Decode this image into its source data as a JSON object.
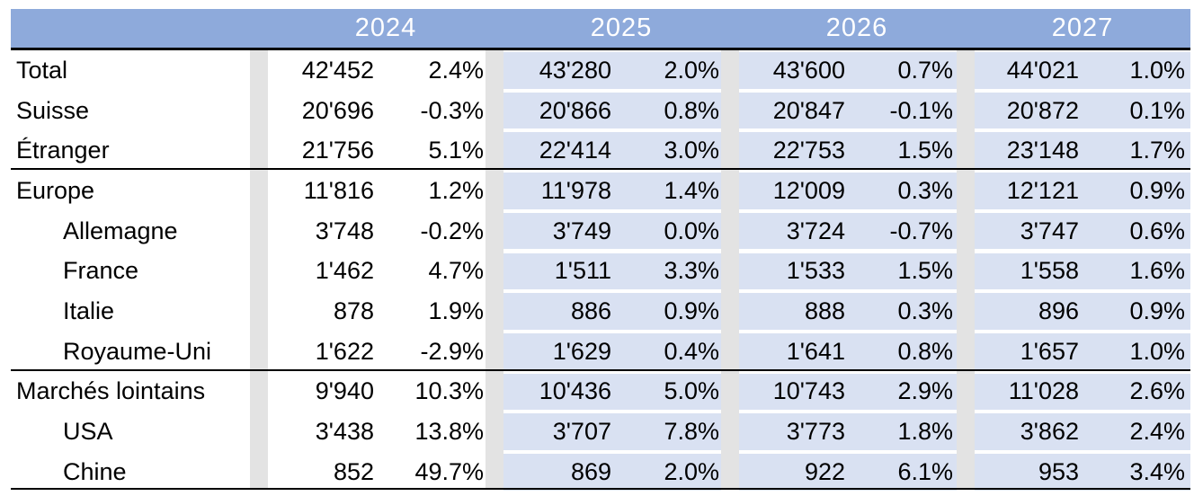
{
  "header": {
    "years": [
      "2024",
      "2025",
      "2026",
      "2027"
    ]
  },
  "rows": [
    {
      "label": "Total",
      "indent": false,
      "vals": [
        "42'452",
        "2.4%",
        "43'280",
        "2.0%",
        "43'600",
        "0.7%",
        "44'021",
        "1.0%"
      ]
    },
    {
      "label": "Suisse",
      "indent": false,
      "vals": [
        "20'696",
        "-0.3%",
        "20'866",
        "0.8%",
        "20'847",
        "-0.1%",
        "20'872",
        "0.1%"
      ]
    },
    {
      "label": "Étranger",
      "indent": false,
      "vals": [
        "21'756",
        "5.1%",
        "22'414",
        "3.0%",
        "22'753",
        "1.5%",
        "23'148",
        "1.7%"
      ]
    },
    {
      "label": "Europe",
      "indent": false,
      "vals": [
        "11'816",
        "1.2%",
        "11'978",
        "1.4%",
        "12'009",
        "0.3%",
        "12'121",
        "0.9%"
      ]
    },
    {
      "label": "Allemagne",
      "indent": true,
      "vals": [
        "3'748",
        "-0.2%",
        "3'749",
        "0.0%",
        "3'724",
        "-0.7%",
        "3'747",
        "0.6%"
      ]
    },
    {
      "label": "France",
      "indent": true,
      "vals": [
        "1'462",
        "4.7%",
        "1'511",
        "3.3%",
        "1'533",
        "1.5%",
        "1'558",
        "1.6%"
      ]
    },
    {
      "label": "Italie",
      "indent": true,
      "vals": [
        "878",
        "1.9%",
        "886",
        "0.9%",
        "888",
        "0.3%",
        "896",
        "0.9%"
      ]
    },
    {
      "label": "Royaume-Uni",
      "indent": true,
      "vals": [
        "1'622",
        "-2.9%",
        "1'629",
        "0.4%",
        "1'641",
        "0.8%",
        "1'657",
        "1.0%"
      ]
    },
    {
      "label": "Marchés lointains",
      "indent": false,
      "vals": [
        "9'940",
        "10.3%",
        "10'436",
        "5.0%",
        "10'743",
        "2.9%",
        "11'028",
        "2.6%"
      ]
    },
    {
      "label": "USA",
      "indent": true,
      "vals": [
        "3'438",
        "13.8%",
        "3'707",
        "7.8%",
        "3'773",
        "1.8%",
        "3'862",
        "2.4%"
      ]
    },
    {
      "label": "Chine",
      "indent": true,
      "vals": [
        "852",
        "49.7%",
        "869",
        "2.0%",
        "922",
        "6.1%",
        "953",
        "3.4%"
      ]
    }
  ]
}
